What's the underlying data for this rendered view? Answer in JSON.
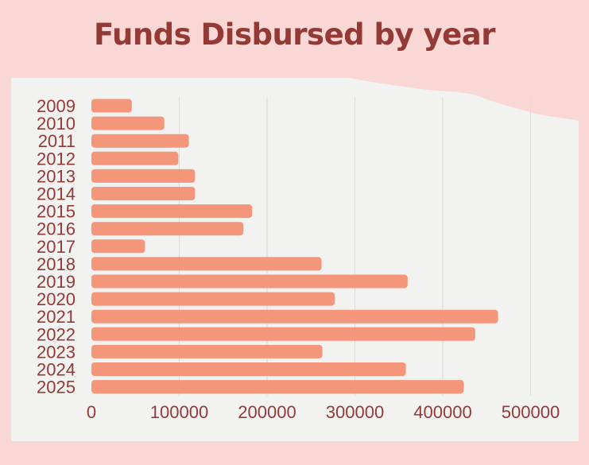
{
  "colors": {
    "background": "#f9d7d5",
    "paper": "#f2f2f0",
    "bar": "#f4967a",
    "text": "#933a36",
    "grid": "#dedbd6"
  },
  "chart_data": {
    "type": "bar",
    "orientation": "horizontal",
    "title": "Funds Disbursed by year",
    "xlabel": "",
    "ylabel": "",
    "xlim": [
      0,
      550000
    ],
    "xticks": [
      0,
      100000,
      200000,
      300000,
      400000,
      500000
    ],
    "grid": true,
    "categories": [
      "2009",
      "2010",
      "2011",
      "2012",
      "2013",
      "2014",
      "2015",
      "2016",
      "2017",
      "2018",
      "2019",
      "2020",
      "2021",
      "2022",
      "2023",
      "2024",
      "2025"
    ],
    "values": [
      46000,
      83000,
      111000,
      99000,
      118000,
      118000,
      183000,
      173000,
      61000,
      262000,
      360000,
      277000,
      463000,
      437000,
      263000,
      358000,
      424000
    ]
  }
}
